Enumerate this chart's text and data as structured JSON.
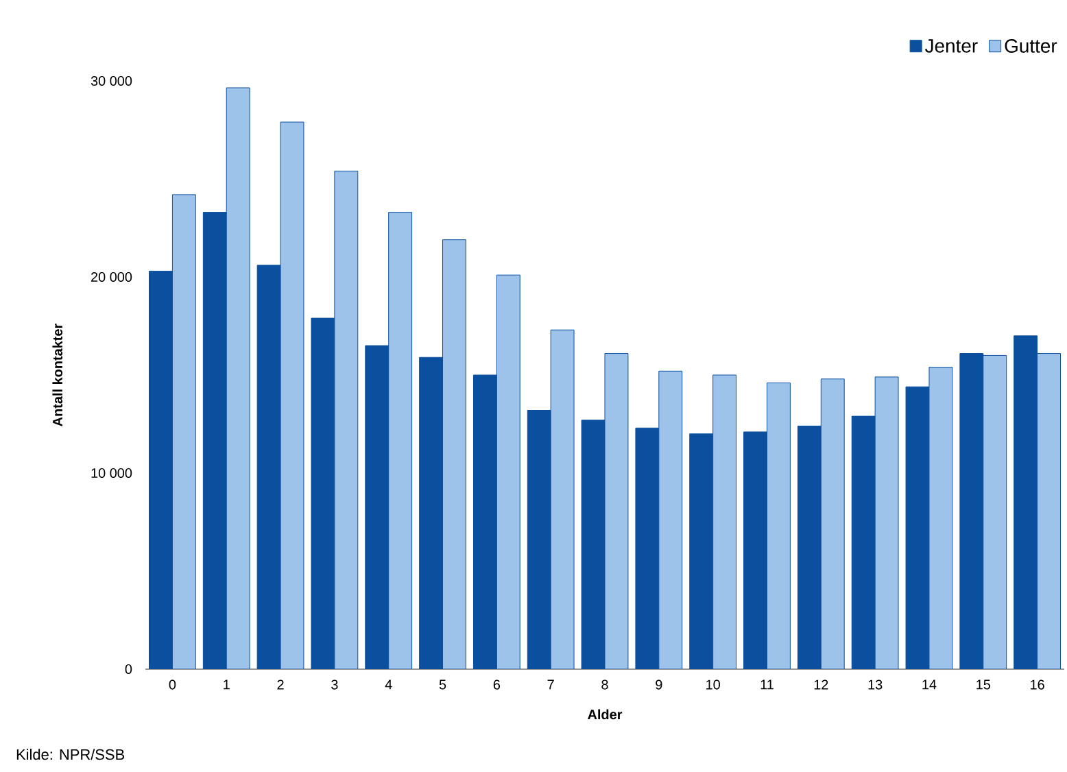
{
  "chart_data": {
    "type": "bar",
    "xlabel": "Alder",
    "ylabel": "Antall kontakter",
    "categories": [
      "0",
      "1",
      "2",
      "3",
      "4",
      "5",
      "6",
      "7",
      "8",
      "9",
      "10",
      "11",
      "12",
      "13",
      "14",
      "15",
      "16"
    ],
    "series": [
      {
        "name": "Jenter",
        "color": "#0b4f9f",
        "values": [
          20300,
          23300,
          20600,
          17900,
          16500,
          15900,
          15000,
          13200,
          12700,
          12300,
          12000,
          12100,
          12400,
          12900,
          14400,
          16100,
          17000
        ]
      },
      {
        "name": "Gutter",
        "color": "#9dc3ea",
        "values": [
          24200,
          29650,
          27900,
          25400,
          23300,
          21900,
          20100,
          17300,
          16100,
          15200,
          15000,
          14600,
          14800,
          14900,
          15400,
          16000,
          16100
        ]
      }
    ],
    "ylim": [
      0,
      30000
    ],
    "yticks": [
      0,
      {
        "value": 10000,
        "label": "10 000"
      },
      {
        "value": 20000,
        "label": "20 000"
      },
      {
        "value": 30000,
        "label": "30 000"
      }
    ],
    "grid": false,
    "legend": "top right",
    "annotations": [
      "Kilde: NPR/SSB"
    ]
  }
}
